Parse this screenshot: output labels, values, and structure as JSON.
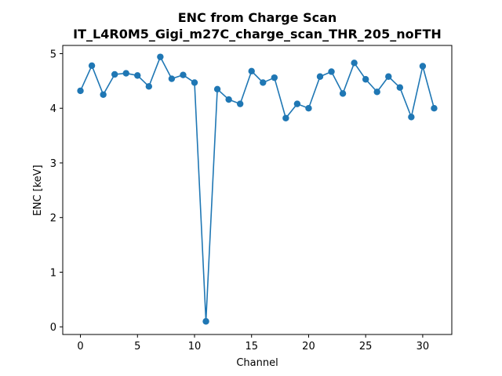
{
  "chart_data": {
    "type": "line",
    "title": "ENC from Charge Scan",
    "subtitle": "IT_L4R0M5_Gigi_m27C_charge_scan_THR_205_noFTH",
    "xlabel": "Channel",
    "ylabel": "ENC [keV]",
    "xlim": [
      -1.55,
      32.55
    ],
    "ylim": [
      -0.14,
      5.15
    ],
    "xticks": [
      0,
      5,
      10,
      15,
      20,
      25,
      30
    ],
    "yticks": [
      0,
      1,
      2,
      3,
      4,
      5
    ],
    "grid": false,
    "series": [
      {
        "color": "#1f77b4",
        "marker": "circle",
        "x": [
          0,
          1,
          2,
          3,
          4,
          5,
          6,
          7,
          8,
          9,
          10,
          11,
          12,
          13,
          14,
          15,
          16,
          17,
          18,
          19,
          20,
          21,
          22,
          23,
          24,
          25,
          26,
          27,
          28,
          29,
          30,
          31
        ],
        "values": [
          4.32,
          4.78,
          4.25,
          4.62,
          4.64,
          4.6,
          4.4,
          4.94,
          4.54,
          4.61,
          4.47,
          0.1,
          4.35,
          4.16,
          4.08,
          4.68,
          4.47,
          4.56,
          3.82,
          4.08,
          4.0,
          4.58,
          4.67,
          4.27,
          4.83,
          4.53,
          4.3,
          4.58,
          4.38,
          3.84,
          4.77,
          4.0
        ]
      }
    ]
  }
}
